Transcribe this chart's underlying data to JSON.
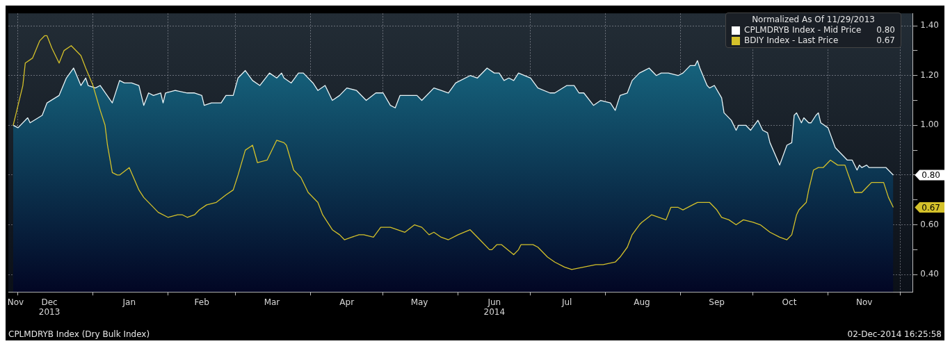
{
  "chart_data": {
    "type": "area",
    "title": "CPLMDRYB Index (Dry Bulk Index)",
    "legend_title": "Normalized As Of 11/29/2013",
    "legend": "top right",
    "grid": true,
    "xlim": [
      "2013-11-27",
      "2014-12-06"
    ],
    "xticks": [
      {
        "value": "2013-12-01",
        "label": null
      },
      {
        "value": "2014-01-01",
        "label": null
      },
      {
        "value": "2014-02-01",
        "label": null
      },
      {
        "value": "2014-03-01",
        "label": null
      },
      {
        "value": "2014-04-01",
        "label": null
      },
      {
        "value": "2014-05-01",
        "label": null
      },
      {
        "value": "2014-06-01",
        "label": null
      },
      {
        "value": "2014-07-01",
        "label": null
      },
      {
        "value": "2014-08-01",
        "label": null
      },
      {
        "value": "2014-09-01",
        "label": null
      },
      {
        "value": "2014-10-01",
        "label": null
      },
      {
        "value": "2014-11-01",
        "label": null
      },
      {
        "value": "2014-12-01",
        "label": null
      },
      {
        "value": "2013-11-30",
        "label": "Nov"
      },
      {
        "value": "2013-12-14",
        "label": "Dec\n2013"
      },
      {
        "value": "2014-01-16",
        "label": "Jan"
      },
      {
        "value": "2014-02-15",
        "label": "Feb"
      },
      {
        "value": "2014-03-16",
        "label": "Mar"
      },
      {
        "value": "2014-04-16",
        "label": "Apr"
      },
      {
        "value": "2014-05-16",
        "label": "May"
      },
      {
        "value": "2014-06-16",
        "label": "Jun\n2014"
      },
      {
        "value": "2014-07-16",
        "label": "Jul"
      },
      {
        "value": "2014-08-16",
        "label": "Aug"
      },
      {
        "value": "2014-09-16",
        "label": "Sep"
      },
      {
        "value": "2014-10-16",
        "label": "Oct"
      },
      {
        "value": "2014-11-16",
        "label": "Nov"
      }
    ],
    "ylim": [
      0.33,
      1.45
    ],
    "yticks": [
      {
        "value": 0.4,
        "label": "0.40"
      },
      {
        "value": 0.5,
        "label": null
      },
      {
        "value": 0.6,
        "label": "0.60"
      },
      {
        "value": 0.7,
        "label": null
      },
      {
        "value": 0.8,
        "label": "0.80"
      },
      {
        "value": 0.9,
        "label": null
      },
      {
        "value": 1.0,
        "label": "1.00"
      },
      {
        "value": 1.1,
        "label": null
      },
      {
        "value": 1.2,
        "label": "1.20"
      },
      {
        "value": 1.3,
        "label": null
      },
      {
        "value": 1.4,
        "label": "1.40"
      }
    ],
    "series": [
      {
        "name": "CPLMDRYB Index - Mid Price",
        "color": "#1a7790",
        "x": [
          "2013-11-29",
          "2013-12-01",
          "2013-12-05",
          "2013-12-06",
          "2013-12-11",
          "2013-12-13",
          "2013-12-18",
          "2013-12-21",
          "2013-12-24",
          "2013-12-27",
          "2013-12-29",
          "2013-12-30",
          "2014-01-02",
          "2014-01-04",
          "2014-01-09",
          "2014-01-12",
          "2014-01-14",
          "2014-01-17",
          "2014-01-20",
          "2014-01-22",
          "2014-01-24",
          "2014-01-26",
          "2014-01-29",
          "2014-01-30",
          "2014-01-31",
          "2014-02-04",
          "2014-02-09",
          "2014-02-12",
          "2014-02-15",
          "2014-02-16",
          "2014-02-19",
          "2014-02-23",
          "2014-02-25",
          "2014-02-28",
          "2014-03-02",
          "2014-03-05",
          "2014-03-08",
          "2014-03-11",
          "2014-03-15",
          "2014-03-18",
          "2014-03-20",
          "2014-03-21",
          "2014-03-24",
          "2014-03-27",
          "2014-03-29",
          "2014-04-02",
          "2014-04-04",
          "2014-04-07",
          "2014-04-10",
          "2014-04-13",
          "2014-04-16",
          "2014-04-20",
          "2014-04-24",
          "2014-04-28",
          "2014-05-01",
          "2014-05-04",
          "2014-05-06",
          "2014-05-08",
          "2014-05-11",
          "2014-05-15",
          "2014-05-17",
          "2014-05-22",
          "2014-05-25",
          "2014-05-28",
          "2014-05-31",
          "2014-06-06",
          "2014-06-09",
          "2014-06-13",
          "2014-06-16",
          "2014-06-18",
          "2014-06-20",
          "2014-06-22",
          "2014-06-24",
          "2014-06-26",
          "2014-07-01",
          "2014-07-04",
          "2014-07-09",
          "2014-07-11",
          "2014-07-16",
          "2014-07-19",
          "2014-07-21",
          "2014-07-23",
          "2014-07-27",
          "2014-07-30",
          "2014-08-03",
          "2014-08-05",
          "2014-08-07",
          "2014-08-10",
          "2014-08-12",
          "2014-08-15",
          "2014-08-17",
          "2014-08-19",
          "2014-08-22",
          "2014-08-24",
          "2014-08-27",
          "2014-08-31",
          "2014-09-02",
          "2014-09-05",
          "2014-09-07",
          "2014-09-08",
          "2014-09-09",
          "2014-09-12",
          "2014-09-13",
          "2014-09-15",
          "2014-09-18",
          "2014-09-19",
          "2014-09-22",
          "2014-09-24",
          "2014-09-25",
          "2014-09-28",
          "2014-09-30",
          "2014-10-03",
          "2014-10-05",
          "2014-10-07",
          "2014-10-08",
          "2014-10-12",
          "2014-10-15",
          "2014-10-17",
          "2014-10-18",
          "2014-10-19",
          "2014-10-21",
          "2014-10-22",
          "2014-10-24",
          "2014-10-25",
          "2014-10-27",
          "2014-10-28",
          "2014-10-29",
          "2014-11-01",
          "2014-11-04",
          "2014-11-06",
          "2014-11-09",
          "2014-11-11",
          "2014-11-13",
          "2014-11-14",
          "2014-11-15",
          "2014-11-17",
          "2014-11-18",
          "2014-11-20",
          "2014-11-22",
          "2014-11-25",
          "2014-11-28"
        ],
        "values": [
          1.0,
          0.99,
          1.03,
          1.01,
          1.04,
          1.09,
          1.12,
          1.19,
          1.23,
          1.16,
          1.19,
          1.16,
          1.15,
          1.16,
          1.09,
          1.18,
          1.17,
          1.17,
          1.16,
          1.08,
          1.13,
          1.12,
          1.13,
          1.09,
          1.13,
          1.14,
          1.13,
          1.13,
          1.12,
          1.08,
          1.09,
          1.09,
          1.12,
          1.12,
          1.19,
          1.22,
          1.18,
          1.16,
          1.21,
          1.19,
          1.21,
          1.19,
          1.17,
          1.21,
          1.21,
          1.17,
          1.14,
          1.16,
          1.1,
          1.12,
          1.15,
          1.14,
          1.1,
          1.13,
          1.13,
          1.08,
          1.07,
          1.12,
          1.12,
          1.12,
          1.1,
          1.15,
          1.14,
          1.13,
          1.17,
          1.2,
          1.19,
          1.23,
          1.21,
          1.21,
          1.18,
          1.19,
          1.18,
          1.21,
          1.19,
          1.15,
          1.13,
          1.13,
          1.16,
          1.16,
          1.13,
          1.13,
          1.08,
          1.1,
          1.09,
          1.06,
          1.12,
          1.13,
          1.18,
          1.21,
          1.22,
          1.23,
          1.2,
          1.21,
          1.21,
          1.2,
          1.21,
          1.24,
          1.24,
          1.26,
          1.23,
          1.16,
          1.15,
          1.16,
          1.11,
          1.05,
          1.02,
          0.98,
          1.0,
          1.0,
          0.98,
          1.02,
          0.98,
          0.97,
          0.93,
          0.84,
          0.92,
          0.93,
          1.04,
          1.05,
          1.01,
          1.03,
          1.01,
          1.01,
          1.04,
          1.05,
          1.01,
          0.99,
          0.91,
          0.89,
          0.86,
          0.86,
          0.82,
          0.84,
          0.83,
          0.84,
          0.83,
          0.83,
          0.83,
          0.83,
          0.8
        ]
      },
      {
        "name": "BDIY Index - Last Price",
        "type": "line",
        "color": "#d4c12a",
        "x": [
          "2013-11-29",
          "2013-12-03",
          "2013-12-04",
          "2013-12-07",
          "2013-12-10",
          "2013-12-12",
          "2013-12-13",
          "2013-12-15",
          "2013-12-18",
          "2013-12-20",
          "2013-12-23",
          "2013-12-27",
          "2013-12-29",
          "2014-01-01",
          "2014-01-04",
          "2014-01-06",
          "2014-01-07",
          "2014-01-09",
          "2014-01-11",
          "2014-01-12",
          "2014-01-16",
          "2014-01-20",
          "2014-01-22",
          "2014-01-25",
          "2014-01-28",
          "2014-02-01",
          "2014-02-05",
          "2014-02-07",
          "2014-02-09",
          "2014-02-12",
          "2014-02-14",
          "2014-02-17",
          "2014-02-21",
          "2014-02-25",
          "2014-02-28",
          "2014-03-02",
          "2014-03-05",
          "2014-03-08",
          "2014-03-10",
          "2014-03-14",
          "2014-03-18",
          "2014-03-21",
          "2014-03-22",
          "2014-03-25",
          "2014-03-28",
          "2014-03-31",
          "2014-04-04",
          "2014-04-06",
          "2014-04-10",
          "2014-04-13",
          "2014-04-15",
          "2014-04-18",
          "2014-04-21",
          "2014-04-23",
          "2014-04-27",
          "2014-04-30",
          "2014-05-04",
          "2014-05-10",
          "2014-05-14",
          "2014-05-17",
          "2014-05-20",
          "2014-05-22",
          "2014-05-25",
          "2014-05-28",
          "2014-06-01",
          "2014-06-06",
          "2014-06-10",
          "2014-06-14",
          "2014-06-15",
          "2014-06-17",
          "2014-06-19",
          "2014-06-24",
          "2014-06-26",
          "2014-06-27",
          "2014-07-02",
          "2014-07-04",
          "2014-07-08",
          "2014-07-11",
          "2014-07-15",
          "2014-07-18",
          "2014-07-23",
          "2014-07-28",
          "2014-07-31",
          "2014-08-05",
          "2014-08-07",
          "2014-08-10",
          "2014-08-12",
          "2014-08-15",
          "2014-08-16",
          "2014-08-20",
          "2014-08-26",
          "2014-08-28",
          "2014-08-31",
          "2014-09-02",
          "2014-09-06",
          "2014-09-08",
          "2014-09-13",
          "2014-09-16",
          "2014-09-18",
          "2014-09-21",
          "2014-09-24",
          "2014-09-27",
          "2014-10-01",
          "2014-10-04",
          "2014-10-08",
          "2014-10-12",
          "2014-10-15",
          "2014-10-17",
          "2014-10-19",
          "2014-10-20",
          "2014-10-23",
          "2014-10-24",
          "2014-10-26",
          "2014-10-28",
          "2014-10-30",
          "2014-11-02",
          "2014-11-05",
          "2014-11-08",
          "2014-11-12",
          "2014-11-15",
          "2014-11-17",
          "2014-11-19",
          "2014-11-24",
          "2014-11-26",
          "2014-11-28"
        ],
        "values": [
          1.0,
          1.16,
          1.25,
          1.27,
          1.34,
          1.36,
          1.36,
          1.31,
          1.25,
          1.3,
          1.32,
          1.28,
          1.23,
          1.16,
          1.06,
          1.0,
          0.92,
          0.81,
          0.8,
          0.8,
          0.83,
          0.74,
          0.71,
          0.68,
          0.65,
          0.63,
          0.64,
          0.64,
          0.63,
          0.64,
          0.66,
          0.68,
          0.69,
          0.72,
          0.74,
          0.8,
          0.9,
          0.92,
          0.85,
          0.86,
          0.94,
          0.93,
          0.92,
          0.82,
          0.79,
          0.73,
          0.69,
          0.64,
          0.58,
          0.56,
          0.54,
          0.55,
          0.56,
          0.56,
          0.55,
          0.59,
          0.59,
          0.57,
          0.6,
          0.59,
          0.56,
          0.57,
          0.55,
          0.54,
          0.56,
          0.58,
          0.54,
          0.5,
          0.5,
          0.52,
          0.52,
          0.48,
          0.5,
          0.52,
          0.52,
          0.51,
          0.47,
          0.45,
          0.43,
          0.42,
          0.43,
          0.44,
          0.44,
          0.45,
          0.47,
          0.51,
          0.56,
          0.6,
          0.61,
          0.64,
          0.62,
          0.67,
          0.67,
          0.66,
          0.68,
          0.69,
          0.69,
          0.66,
          0.63,
          0.62,
          0.6,
          0.62,
          0.61,
          0.6,
          0.57,
          0.55,
          0.54,
          0.56,
          0.64,
          0.66,
          0.69,
          0.74,
          0.82,
          0.83,
          0.83,
          0.86,
          0.84,
          0.84,
          0.73,
          0.73,
          0.75,
          0.77,
          0.77,
          0.71,
          0.67
        ]
      }
    ],
    "annotations": [
      "0.80",
      "0.67",
      "02-Dec-2014 16:25:58"
    ]
  }
}
